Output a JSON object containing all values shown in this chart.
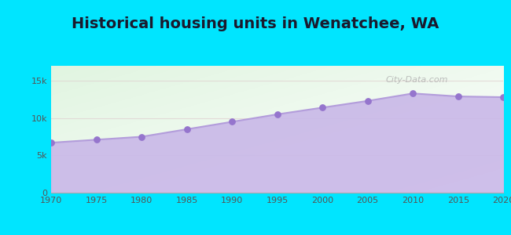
{
  "title": "Historical housing units in Wenatchee, WA",
  "title_fontsize": 14,
  "title_fontweight": "bold",
  "title_color": "#1a1a2e",
  "years": [
    1970,
    1975,
    1980,
    1985,
    1990,
    1995,
    2000,
    2005,
    2010,
    2015,
    2020
  ],
  "values": [
    6700,
    7100,
    7500,
    8500,
    9500,
    10500,
    11400,
    12300,
    13300,
    12900,
    12800
  ],
  "line_color": "#b39ddb",
  "fill_color": "#c9b8e8",
  "fill_alpha": 0.9,
  "marker_color": "#9575cd",
  "marker_size": 28,
  "bg_outer": "#00e5ff",
  "ylim": [
    0,
    17000
  ],
  "yticks": [
    0,
    5000,
    10000,
    15000
  ],
  "ytick_labels": [
    "0",
    "5k",
    "10k",
    "15k"
  ],
  "xticks": [
    1970,
    1975,
    1980,
    1985,
    1990,
    1995,
    2000,
    2005,
    2010,
    2015,
    2020
  ],
  "watermark_text": "City-Data.com",
  "grid_color": "#e0d0d0",
  "grid_alpha": 0.7,
  "tick_fontsize": 8,
  "tick_color": "#555555"
}
